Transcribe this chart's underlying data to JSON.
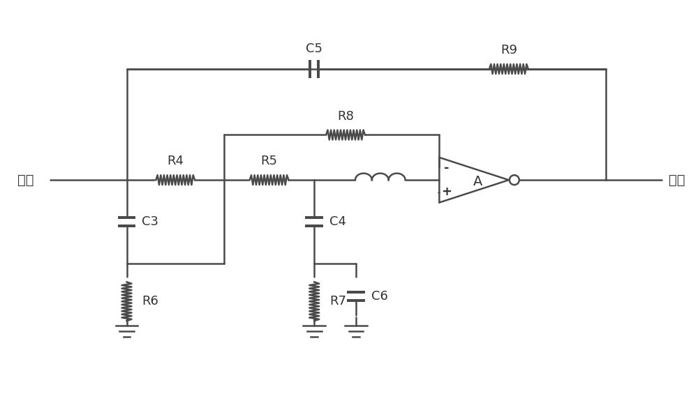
{
  "bg_color": "#ffffff",
  "line_color": "#4a4a4a",
  "line_width": 1.8,
  "text_color": "#333333",
  "font_size": 13,
  "title": "",
  "labels": {
    "input": "输入",
    "output": "输出",
    "R4": "R4",
    "R5": "R5",
    "R6": "R6",
    "R7": "R7",
    "R8": "R8",
    "R9": "R9",
    "C3": "C3",
    "C4": "C4",
    "C5": "C5",
    "C6": "C6",
    "A": "A"
  }
}
